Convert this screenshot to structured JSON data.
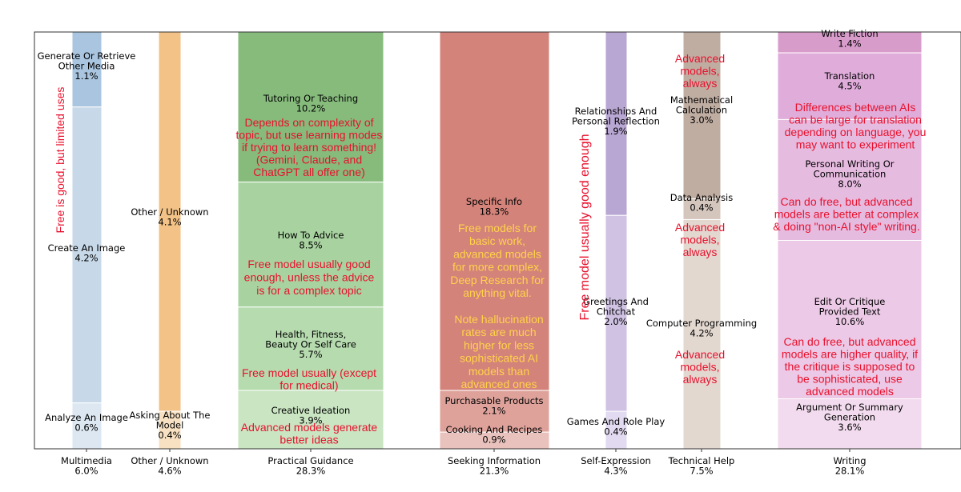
{
  "colors": {
    "annotation_red": "#e8112d",
    "annotation_yellow": "#ffd24a",
    "frame": "#333333"
  },
  "chart_data": {
    "type": "bar",
    "subtype": "stacked-100-percent-columns",
    "title": "",
    "xlabel": "",
    "ylabel": "",
    "ylim": [
      0,
      1
    ],
    "grid": false,
    "categories": [
      {
        "name": "Multimedia",
        "total": "6.0%",
        "segments": [
          {
            "name": "Generate Or Retrieve Other Media",
            "lines": [
              "Generate Or Retrieve",
              "Other Media"
            ],
            "label": "1.1%",
            "share": 0.18,
            "color": "#a9c5df"
          },
          {
            "name": "Create An Image",
            "lines": [
              "Create An Image"
            ],
            "label": "4.2%",
            "share": 0.71,
            "color": "#c7d8e8"
          },
          {
            "name": "Analyze An Image",
            "lines": [
              "Analyze An Image"
            ],
            "label": "0.6%",
            "share": 0.11,
            "color": "#dce7f1"
          }
        ]
      },
      {
        "name": "Other / Unknown",
        "total": "4.6%",
        "segments": [
          {
            "name": "Other / Unknown",
            "lines": [
              "Other / Unknown"
            ],
            "label": "4.1%",
            "share": 0.91,
            "color": "#f2c287"
          },
          {
            "name": "Asking About The Model",
            "lines": [
              "Asking About The",
              "Model"
            ],
            "label": "0.4%",
            "share": 0.09,
            "color": "#f8e1c2"
          }
        ]
      },
      {
        "name": "Practical Guidance",
        "total": "28.3%",
        "segments": [
          {
            "name": "Tutoring Or Teaching",
            "lines": [
              "Tutoring Or Teaching"
            ],
            "label": "10.2%",
            "share": 0.36,
            "color": "#86bb7c"
          },
          {
            "name": "How To Advice",
            "lines": [
              "How To Advice"
            ],
            "label": "8.5%",
            "share": 0.3,
            "color": "#a8d3a0"
          },
          {
            "name": "Health, Fitness, Beauty Or Self Care",
            "lines": [
              "Health, Fitness,",
              "Beauty Or Self Care"
            ],
            "label": "5.7%",
            "share": 0.2,
            "color": "#b6dbaf"
          },
          {
            "name": "Creative Ideation",
            "lines": [
              "Creative Ideation"
            ],
            "label": "3.9%",
            "share": 0.14,
            "color": "#c9e5c2"
          }
        ]
      },
      {
        "name": "Seeking Information",
        "total": "21.3%",
        "segments": [
          {
            "name": "Specific Info",
            "lines": [
              "Specific Info"
            ],
            "label": "18.3%",
            "share": 0.86,
            "color": "#d3837a"
          },
          {
            "name": "Purchasable Products",
            "lines": [
              "Purchasable Products"
            ],
            "label": "2.1%",
            "share": 0.1,
            "color": "#dea29b"
          },
          {
            "name": "Cooking And Recipes",
            "lines": [
              "Cooking And Recipes"
            ],
            "label": "0.9%",
            "share": 0.04,
            "color": "#eac2bd"
          }
        ]
      },
      {
        "name": "Self-Expression",
        "total": "4.3%",
        "segments": [
          {
            "name": "Relationships And Personal Reflection",
            "lines": [
              "Relationships And",
              "Personal Reflection"
            ],
            "label": "1.9%",
            "share": 0.44,
            "color": "#b8a6d3"
          },
          {
            "name": "Greetings And Chitchat",
            "lines": [
              "Greetings And",
              "Chitchat"
            ],
            "label": "2.0%",
            "share": 0.47,
            "color": "#cfc2e3"
          },
          {
            "name": "Games And Role Play",
            "lines": [
              "Games And Role Play"
            ],
            "label": "0.4%",
            "share": 0.09,
            "color": "#e2daf0"
          }
        ]
      },
      {
        "name": "Technical Help",
        "total": "7.5%",
        "segments": [
          {
            "name": "Mathematical Calculation",
            "lines": [
              "Mathematical",
              "Calculation"
            ],
            "label": "3.0%",
            "share": 0.4,
            "color": "#c0ada2"
          },
          {
            "name": "Data Analysis",
            "lines": [
              "Data Analysis"
            ],
            "label": "0.4%",
            "share": 0.05,
            "color": "#d4c6bd"
          },
          {
            "name": "Computer Programming",
            "lines": [
              "Computer Programming"
            ],
            "label": "4.2%",
            "share": 0.55,
            "color": "#e3d8d0"
          }
        ]
      },
      {
        "name": "Writing",
        "total": "28.1%",
        "segments": [
          {
            "name": "Write Fiction",
            "lines": [
              "Write Fiction"
            ],
            "label": "1.4%",
            "share": 0.05,
            "color": "#d89ccb"
          },
          {
            "name": "Translation",
            "lines": [
              "Translation"
            ],
            "label": "4.5%",
            "share": 0.16,
            "color": "#e0addb"
          },
          {
            "name": "Personal Writing Or Communication",
            "lines": [
              "Personal Writing Or",
              "Communication"
            ],
            "label": "8.0%",
            "share": 0.29,
            "color": "#e6bbe0"
          },
          {
            "name": "Edit Or Critique Provided Text",
            "lines": [
              "Edit Or Critique",
              "Provided Text"
            ],
            "label": "10.6%",
            "share": 0.38,
            "color": "#ecc9e6"
          },
          {
            "name": "Argument Or Summary Generation",
            "lines": [
              "Argument Or Summary",
              "Generation"
            ],
            "label": "3.6%",
            "share": 0.12,
            "color": "#f2dbee"
          }
        ]
      }
    ],
    "annotations": [
      {
        "id": "multimedia-note",
        "color": "red",
        "rotated": true,
        "lines": [
          "Free is good, but limited uses"
        ]
      },
      {
        "id": "tutoring-note",
        "color": "red",
        "lines": [
          "Depends on complexity of",
          "topic, but use learning modes",
          "if trying to learn something!",
          "(Gemini, Claude, and",
          "ChatGPT all offer one)"
        ]
      },
      {
        "id": "howto-note",
        "color": "red",
        "lines": [
          "Free model usually good",
          "enough, unless the advice",
          "is for a complex topic"
        ]
      },
      {
        "id": "health-note",
        "color": "red",
        "lines": [
          "Free model usually (except",
          "for medical)"
        ]
      },
      {
        "id": "ideation-note",
        "color": "red",
        "lines": [
          "Advanced models generate",
          "better ideas"
        ]
      },
      {
        "id": "specific-info-note",
        "color": "yellow",
        "lines": [
          "Free models for",
          "basic work,",
          "advanced models",
          "for more complex,",
          "Deep Research for",
          "anything vital."
        ]
      },
      {
        "id": "hallucination-note",
        "color": "yellow",
        "lines": [
          "Note hallucination",
          "rates are much",
          "higher for less",
          "sophisticated AI",
          "models than",
          "advanced ones"
        ]
      },
      {
        "id": "self-expression-note",
        "color": "red",
        "rotated": true,
        "lines": [
          "Free model usually good enough"
        ]
      },
      {
        "id": "math-note",
        "color": "red",
        "lines": [
          "Advanced",
          "models,",
          "always"
        ]
      },
      {
        "id": "data-analysis-note",
        "color": "red",
        "lines": [
          "Advanced",
          "models,",
          "always"
        ]
      },
      {
        "id": "programming-note",
        "color": "red",
        "lines": [
          "Advanced",
          "models,",
          "always"
        ]
      },
      {
        "id": "translation-note",
        "color": "red",
        "lines": [
          "Differences between AIs",
          "can be large for translation",
          "depending on language, you",
          "may want to experiment"
        ]
      },
      {
        "id": "personal-writing-note",
        "color": "red",
        "lines": [
          "Can do free, but advanced",
          "models are better at complex",
          "& doing \"non-AI style\" writing."
        ]
      },
      {
        "id": "edit-note",
        "color": "red",
        "lines": [
          "Can do free, but advanced",
          "models are higher quality, if",
          "the critique is supposed to",
          "be sophisticated, use",
          "advanced models"
        ]
      }
    ]
  }
}
